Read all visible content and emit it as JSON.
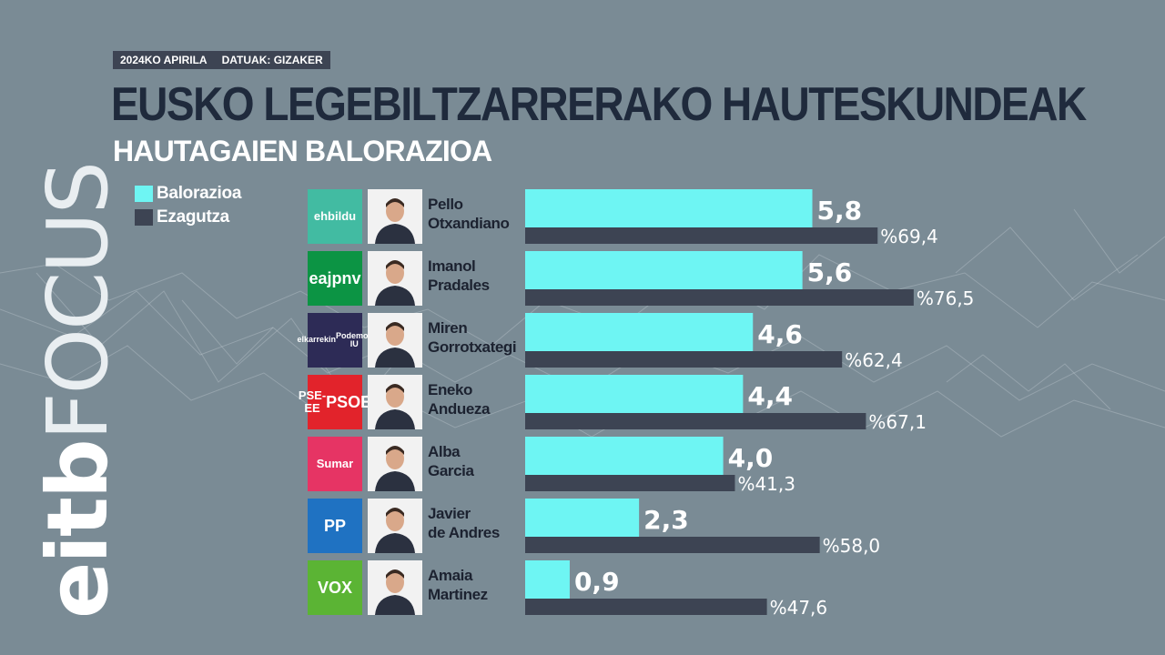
{
  "header": {
    "date": "2024KO APIRILA",
    "source": "DATUAK: GIZAKER",
    "title": "EUSKO LEGEBILTZARRERAKO HAUTESKUNDEAK",
    "subtitle": "HAUTAGAIEN BALORAZIOA"
  },
  "watermark": {
    "bold": "eitb",
    "light": "FOCUS"
  },
  "colors": {
    "valuation": "#6ef5f3",
    "knowledge": "#3d4453",
    "background": "#7a8b95",
    "title": "#1f2a3c"
  },
  "legend": [
    {
      "label": "Balorazioa",
      "color": "#6ef5f3"
    },
    {
      "label": "Ezagutza",
      "color": "#3d4453"
    }
  ],
  "candidates": [
    {
      "first": "Pello",
      "last": "Otxandiano",
      "party": "ehbildu",
      "logo_lines": [
        "ehbildu"
      ],
      "logo_icon": "ehbildu-logo-icon",
      "logo_bg": "#42bba2"
    },
    {
      "first": "Imanol",
      "last": "Pradales",
      "party": "eaj-pnv",
      "logo_lines": [
        "eaj",
        "pnv"
      ],
      "logo_icon": "eaj-pnv-logo-icon",
      "logo_bg": "#0c9444"
    },
    {
      "first": "Miren",
      "last": "Gorrotxategi",
      "party": "elkarrekin-podemos",
      "logo_lines": [
        "elkarrekin",
        "Podemos IU"
      ],
      "logo_icon": "elkarrekin-podemos-logo-icon",
      "logo_bg": "#2d2b56"
    },
    {
      "first": "Eneko",
      "last": "Andueza",
      "party": "pse-ee",
      "logo_lines": [
        "PSE-EE",
        "PSOE"
      ],
      "logo_icon": "psoe-logo-icon",
      "logo_bg": "#e2232b"
    },
    {
      "first": "Alba",
      "last": "Garcia",
      "party": "sumar",
      "logo_lines": [
        "Sumar"
      ],
      "logo_icon": "sumar-logo-icon",
      "logo_bg": "#e63464"
    },
    {
      "first": "Javier",
      "last": "de Andres",
      "party": "pp",
      "logo_lines": [
        "PP"
      ],
      "logo_icon": "pp-logo-icon",
      "logo_bg": "#1f72c2"
    },
    {
      "first": "Amaia",
      "last": "Martinez",
      "party": "vox",
      "logo_lines": [
        "VOX"
      ],
      "logo_icon": "vox-logo-icon",
      "logo_bg": "#5bb434"
    }
  ],
  "chart_data": {
    "type": "bar",
    "orientation": "horizontal",
    "title": "EUSKO LEGEBILTZARRERAKO HAUTESKUNDEAK",
    "subtitle": "HAUTAGAIEN BALORAZIOA",
    "categories": [
      "Pello Otxandiano",
      "Imanol Pradales",
      "Miren Gorrotxategi",
      "Eneko Andueza",
      "Alba Garcia",
      "Javier de Andres",
      "Amaia Martinez"
    ],
    "series": [
      {
        "name": "Balorazioa",
        "values": [
          5.8,
          5.6,
          4.6,
          4.4,
          4.0,
          2.3,
          0.9
        ],
        "labels": [
          "5,8",
          "5,6",
          "4,6",
          "4,4",
          "4,0",
          "2,3",
          "0,9"
        ],
        "range": [
          0,
          10
        ]
      },
      {
        "name": "Ezagutza",
        "values": [
          69.4,
          76.5,
          62.4,
          67.1,
          41.3,
          58.0,
          47.6
        ],
        "labels": [
          "%69,4",
          "%76,5",
          "%62,4",
          "%67,1",
          "%41,3",
          "%58,0",
          "%47,6"
        ],
        "range": [
          0,
          100
        ]
      }
    ],
    "legend_position": "top-left",
    "grid": false
  }
}
